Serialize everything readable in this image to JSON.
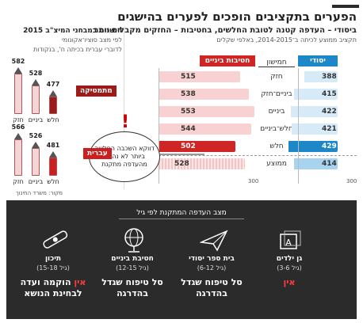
{
  "header": {
    "title": "הפערים בתקציבים הופכים לפערים בהישגים",
    "subtitle": "ביסודי – העדפה קטנה לטובת החלשים, בחטיבות – החזקים מקבלים יותר",
    "subtitle_sub": "תקציב ממוצע לכיתה ב־2014-2015, באלפי שקלים",
    "achievement_title": "הישגים במבחני המיצ\"ב 2015",
    "achievement_sub_1": "לפי מצב סוציו־אקונומי",
    "achievement_sub_2": "לדוברי עברית בכיתה ח', בנקודות"
  },
  "budget_chart": {
    "column_headers": {
      "primary": "יסודי",
      "quintile": "חמישון",
      "middle": "חטיבות ביניים"
    },
    "rows": [
      {
        "label": "חזק",
        "primary": "388",
        "middle": "515"
      },
      {
        "label": "ביניים־חזק",
        "primary": "415",
        "middle": "538"
      },
      {
        "label": "ביניים",
        "primary": "422",
        "middle": "553"
      },
      {
        "label": "חלש־ביניים",
        "primary": "421",
        "middle": "544"
      },
      {
        "label": "חלש",
        "primary": "429",
        "middle": "502"
      },
      {
        "label": "ממוצע",
        "primary": "414",
        "middle": "528"
      }
    ],
    "axis_label": "300",
    "note": "דווקא השכבה החלשה ביותר לא נהנית מהעדפה מתקנת"
  },
  "chart_data": [
    {
      "type": "bar",
      "title": "",
      "subtitle": "תקציב ממוצע לכיתה ב־2014-2015, באלפי שקלים",
      "categories": [
        "חזק",
        "ביניים־חזק",
        "ביניים",
        "חלש־ביניים",
        "חלש",
        "ממוצע"
      ],
      "series": [
        {
          "name": "יסודי",
          "values": [
            388,
            415,
            422,
            421,
            429,
            414
          ]
        },
        {
          "name": "חטיבות ביניים",
          "values": [
            515,
            538,
            553,
            544,
            502,
            528
          ]
        }
      ],
      "xlim": [
        300,
        560
      ],
      "orientation": "horizontal"
    },
    {
      "type": "bar",
      "title": "הישגים במבחני המיצ\"ב 2015",
      "categories": [
        "חזק",
        "ביניים",
        "חלש"
      ],
      "series": [
        {
          "name": "מתמטיקה",
          "values": [
            582,
            528,
            477
          ]
        },
        {
          "name": "עברית",
          "values": [
            566,
            526,
            481
          ]
        }
      ],
      "ylim": [
        400,
        600
      ]
    }
  ],
  "achievements": {
    "subjects": [
      {
        "label": "מתמטיקה",
        "color": "#9b1b1b",
        "pencils": [
          {
            "label": "חזק",
            "value": "582"
          },
          {
            "label": "ביניים",
            "value": "528"
          },
          {
            "label": "חלש",
            "value": "477"
          }
        ]
      },
      {
        "label": "עברית",
        "color": "#cc1f1f",
        "pencils": [
          {
            "label": "חזק",
            "value": "566"
          },
          {
            "label": "ביניים",
            "value": "526"
          },
          {
            "label": "חלש",
            "value": "481"
          }
        ]
      }
    ],
    "source": "מקור: משרד החינוך"
  },
  "panel": {
    "title": "מצב העדפה המתקנת לפי גיל",
    "stages": [
      {
        "name": "גן ילדים",
        "ages": "(גיל 3-6)",
        "status": "אין",
        "status_red": true,
        "icon": "abc-blocks-icon"
      },
      {
        "name": "בית ספר יסודי",
        "ages": "(גיל 6-12)",
        "status": "סל טיפוח שגדל בהדרגה",
        "status_red": false,
        "icon": "paper-plane-icon"
      },
      {
        "name": "חטיבת ביניים",
        "ages": "(גיל 12-15)",
        "status": "סל טיפוח שגדל בהדרגה",
        "status_red": false,
        "icon": "globe-icon"
      },
      {
        "name": "תיכון",
        "ages": "(גיל 15-18)",
        "status_red_part": "אין",
        "status": "הוקמה ועדה לבחינת הנושא",
        "status_red": false,
        "icon": "diploma-icon"
      }
    ]
  }
}
